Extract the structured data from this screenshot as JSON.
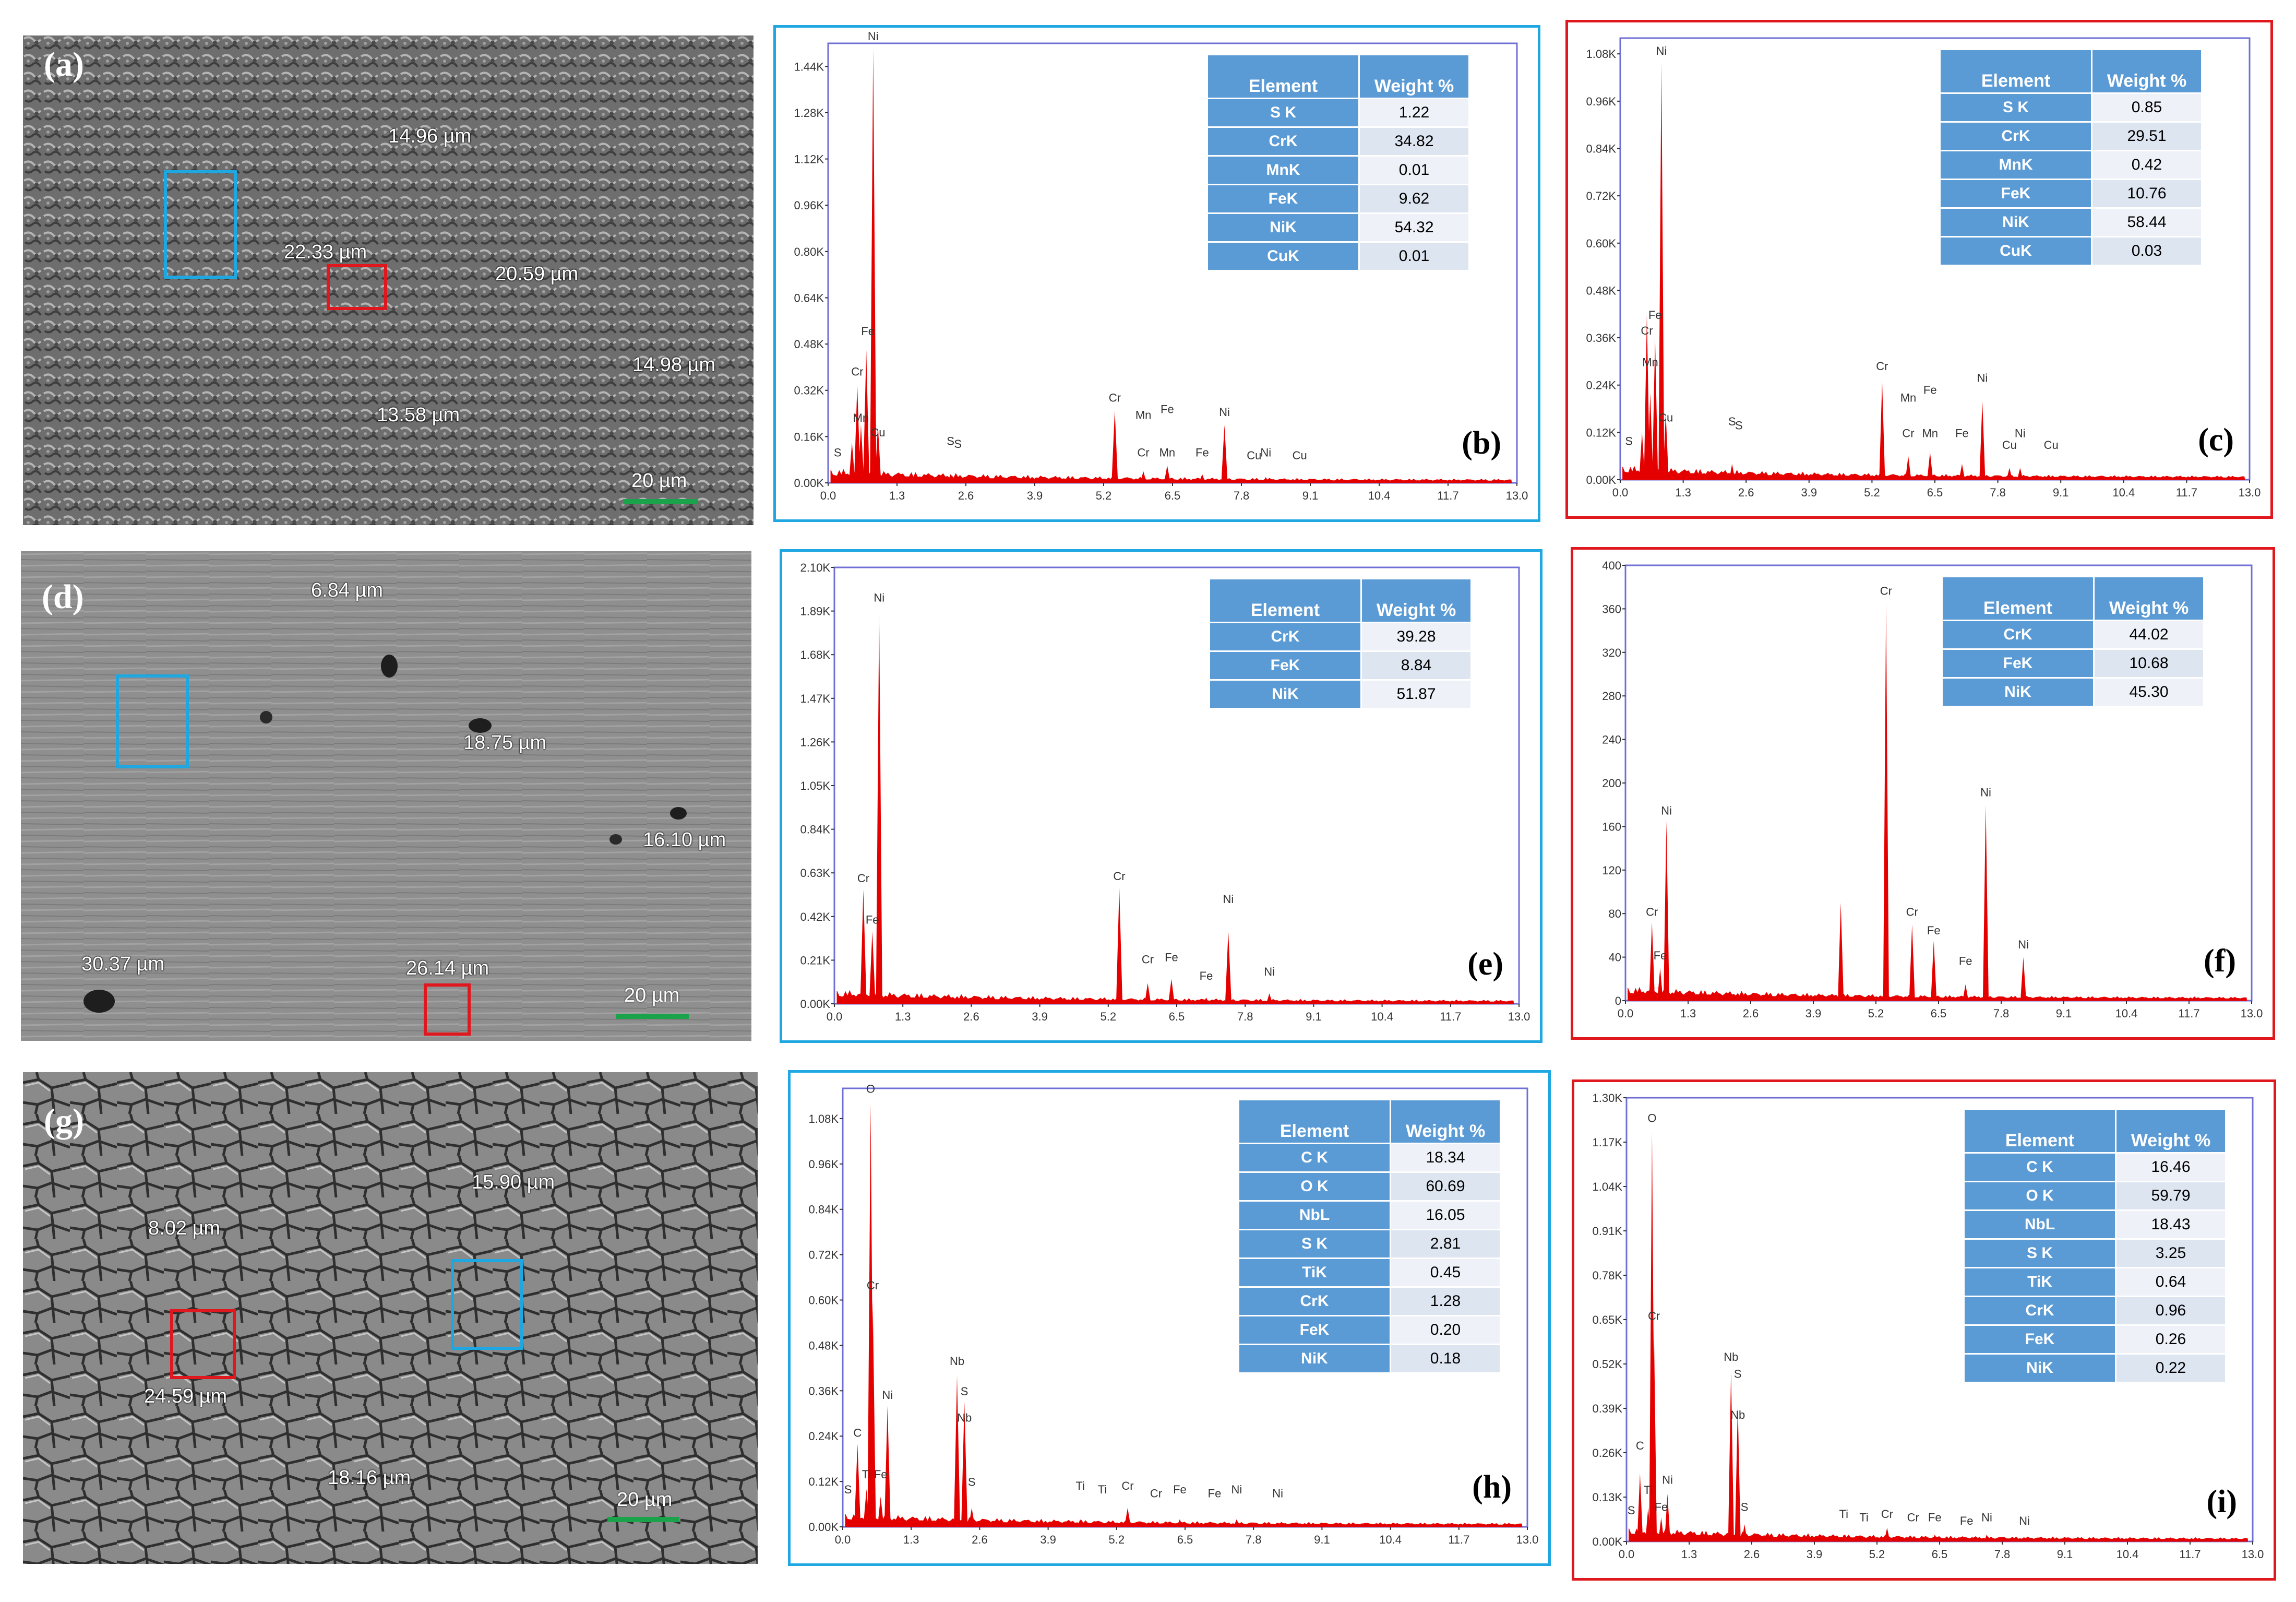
{
  "colors": {
    "blue_roi": "#1ea7e1",
    "red_roi": "#e0171c",
    "spectrum": "#e50000",
    "table_header": "#5b9bd5",
    "scale_bar": "#1aa34a"
  },
  "sem_panels": [
    {
      "label": "(a)",
      "measurements": [
        "14.96 µm",
        "22.33 µm",
        "20.59 µm",
        "14.98 µm",
        "13.58 µm"
      ],
      "scale": "20 µm"
    },
    {
      "label": "(d)",
      "measurements": [
        "6.84 µm",
        "18.75 µm",
        "16.10 µm",
        "30.37 µm",
        "26.14 µm"
      ],
      "scale": "20 µm"
    },
    {
      "label": "(g)",
      "measurements": [
        "15.90 µm",
        "8.02 µm",
        "24.59 µm",
        "18.16 µm"
      ],
      "scale": "20 µm"
    }
  ],
  "table_headers": {
    "element": "Element",
    "weight": "Weight %"
  },
  "chart_data": [
    {
      "type": "bar",
      "panel": "(b)",
      "xlim": [
        0,
        13
      ],
      "x_ticks": [
        "0.0",
        "1.3",
        "2.6",
        "3.9",
        "5.2",
        "6.5",
        "7.8",
        "9.1",
        "10.4",
        "11.7",
        "13.0"
      ],
      "y_ticks": [
        "0.00K",
        "0.16K",
        "0.32K",
        "0.48K",
        "0.64K",
        "0.80K",
        "0.96K",
        "1.12K",
        "1.28K",
        "1.44K"
      ],
      "ylim": [
        0,
        1.52
      ],
      "peaks": [
        {
          "x": 0.45,
          "y": 0.14
        },
        {
          "x": 0.55,
          "y": 0.34
        },
        {
          "x": 0.62,
          "y": 0.2
        },
        {
          "x": 0.72,
          "y": 0.46
        },
        {
          "x": 0.85,
          "y": 1.5
        },
        {
          "x": 0.94,
          "y": 0.2
        },
        {
          "x": 2.31,
          "y": 0.03
        },
        {
          "x": 5.41,
          "y": 0.25
        },
        {
          "x": 5.95,
          "y": 0.04
        },
        {
          "x": 6.4,
          "y": 0.06
        },
        {
          "x": 7.06,
          "y": 0.03
        },
        {
          "x": 7.48,
          "y": 0.2
        },
        {
          "x": 8.04,
          "y": 0.01
        },
        {
          "x": 8.26,
          "y": 0.02
        }
      ],
      "peak_labels": [
        {
          "x": 0.18,
          "y": 0.08,
          "t": "S"
        },
        {
          "x": 0.55,
          "y": 0.36,
          "t": "Cr"
        },
        {
          "x": 0.62,
          "y": 0.2,
          "t": "Mn"
        },
        {
          "x": 0.75,
          "y": 0.5,
          "t": "Fe"
        },
        {
          "x": 0.85,
          "y": 1.52,
          "t": "Ni"
        },
        {
          "x": 0.94,
          "y": 0.15,
          "t": "Cu"
        },
        {
          "x": 2.31,
          "y": 0.12,
          "t": "S"
        },
        {
          "x": 2.45,
          "y": 0.11,
          "t": "S"
        },
        {
          "x": 5.41,
          "y": 0.27,
          "t": "Cr"
        },
        {
          "x": 5.95,
          "y": 0.21,
          "t": "Mn"
        },
        {
          "x": 6.4,
          "y": 0.23,
          "t": "Fe"
        },
        {
          "x": 5.95,
          "y": 0.08,
          "t": "Cr"
        },
        {
          "x": 6.4,
          "y": 0.08,
          "t": "Mn"
        },
        {
          "x": 7.06,
          "y": 0.08,
          "t": "Fe"
        },
        {
          "x": 7.48,
          "y": 0.22,
          "t": "Ni"
        },
        {
          "x": 8.04,
          "y": 0.07,
          "t": "Cu"
        },
        {
          "x": 8.26,
          "y": 0.08,
          "t": "Ni"
        },
        {
          "x": 8.9,
          "y": 0.07,
          "t": "Cu"
        }
      ],
      "table": [
        [
          "S K",
          "1.22"
        ],
        [
          "CrK",
          "34.82"
        ],
        [
          "MnK",
          "0.01"
        ],
        [
          "FeK",
          "9.62"
        ],
        [
          "NiK",
          "54.32"
        ],
        [
          "CuK",
          "0.01"
        ]
      ]
    },
    {
      "type": "bar",
      "panel": "(c)",
      "xlim": [
        0,
        13
      ],
      "x_ticks": [
        "0.0",
        "1.3",
        "2.6",
        "3.9",
        "5.2",
        "6.5",
        "7.8",
        "9.1",
        "10.4",
        "11.7",
        "13.0"
      ],
      "y_ticks": [
        "0.00K",
        "0.12K",
        "0.24K",
        "0.36K",
        "0.48K",
        "0.60K",
        "0.72K",
        "0.84K",
        "0.96K",
        "1.08K"
      ],
      "ylim": [
        0,
        1.12
      ],
      "peaks": [
        {
          "x": 0.45,
          "y": 0.12
        },
        {
          "x": 0.55,
          "y": 0.42
        },
        {
          "x": 0.62,
          "y": 0.22
        },
        {
          "x": 0.72,
          "y": 0.36
        },
        {
          "x": 0.85,
          "y": 1.06
        },
        {
          "x": 0.94,
          "y": 0.17
        },
        {
          "x": 2.31,
          "y": 0.04
        },
        {
          "x": 5.41,
          "y": 0.25
        },
        {
          "x": 5.95,
          "y": 0.06
        },
        {
          "x": 6.4,
          "y": 0.07
        },
        {
          "x": 7.06,
          "y": 0.04
        },
        {
          "x": 7.48,
          "y": 0.2
        },
        {
          "x": 8.04,
          "y": 0.03
        },
        {
          "x": 8.26,
          "y": 0.03
        }
      ],
      "peak_labels": [
        {
          "x": 0.18,
          "y": 0.08,
          "t": "S"
        },
        {
          "x": 0.55,
          "y": 0.36,
          "t": "Cr"
        },
        {
          "x": 0.62,
          "y": 0.28,
          "t": "Mn"
        },
        {
          "x": 0.72,
          "y": 0.4,
          "t": "Fe"
        },
        {
          "x": 0.85,
          "y": 1.07,
          "t": "Ni"
        },
        {
          "x": 0.94,
          "y": 0.14,
          "t": "Cu"
        },
        {
          "x": 2.31,
          "y": 0.13,
          "t": "S"
        },
        {
          "x": 2.45,
          "y": 0.12,
          "t": "S"
        },
        {
          "x": 5.41,
          "y": 0.27,
          "t": "Cr"
        },
        {
          "x": 5.95,
          "y": 0.19,
          "t": "Mn"
        },
        {
          "x": 6.4,
          "y": 0.21,
          "t": "Fe"
        },
        {
          "x": 5.95,
          "y": 0.1,
          "t": "Cr"
        },
        {
          "x": 6.4,
          "y": 0.1,
          "t": "Mn"
        },
        {
          "x": 7.06,
          "y": 0.1,
          "t": "Fe"
        },
        {
          "x": 7.48,
          "y": 0.24,
          "t": "Ni"
        },
        {
          "x": 8.04,
          "y": 0.07,
          "t": "Cu"
        },
        {
          "x": 8.26,
          "y": 0.1,
          "t": "Ni"
        },
        {
          "x": 8.9,
          "y": 0.07,
          "t": "Cu"
        }
      ],
      "table": [
        [
          "S K",
          "0.85"
        ],
        [
          "CrK",
          "29.51"
        ],
        [
          "MnK",
          "0.42"
        ],
        [
          "FeK",
          "10.76"
        ],
        [
          "NiK",
          "58.44"
        ],
        [
          "CuK",
          "0.03"
        ]
      ]
    },
    {
      "type": "bar",
      "panel": "(e)",
      "xlim": [
        0,
        13
      ],
      "x_ticks": [
        "0.0",
        "1.3",
        "2.6",
        "3.9",
        "5.2",
        "6.5",
        "7.8",
        "9.1",
        "10.4",
        "11.7",
        "13.0"
      ],
      "y_ticks": [
        "0.00K",
        "0.21K",
        "0.42K",
        "0.63K",
        "0.84K",
        "1.05K",
        "1.26K",
        "1.47K",
        "1.68K",
        "1.89K",
        "2.10K"
      ],
      "ylim": [
        0,
        2.1
      ],
      "peaks": [
        {
          "x": 0.55,
          "y": 0.55
        },
        {
          "x": 0.72,
          "y": 0.35
        },
        {
          "x": 0.85,
          "y": 1.9
        },
        {
          "x": 5.41,
          "y": 0.56
        },
        {
          "x": 5.95,
          "y": 0.1
        },
        {
          "x": 6.4,
          "y": 0.12
        },
        {
          "x": 7.06,
          "y": 0.03
        },
        {
          "x": 7.48,
          "y": 0.35
        },
        {
          "x": 8.26,
          "y": 0.05
        }
      ],
      "peak_labels": [
        {
          "x": 0.55,
          "y": 0.57,
          "t": "Cr"
        },
        {
          "x": 0.72,
          "y": 0.37,
          "t": "Fe"
        },
        {
          "x": 0.85,
          "y": 1.92,
          "t": "Ni"
        },
        {
          "x": 5.41,
          "y": 0.58,
          "t": "Cr"
        },
        {
          "x": 5.95,
          "y": 0.18,
          "t": "Cr"
        },
        {
          "x": 6.4,
          "y": 0.19,
          "t": "Fe"
        },
        {
          "x": 7.06,
          "y": 0.1,
          "t": "Fe"
        },
        {
          "x": 7.48,
          "y": 0.47,
          "t": "Ni"
        },
        {
          "x": 8.26,
          "y": 0.12,
          "t": "Ni"
        }
      ],
      "table": [
        [
          "CrK",
          "39.28"
        ],
        [
          "FeK",
          "8.84"
        ],
        [
          "NiK",
          "51.87"
        ]
      ]
    },
    {
      "type": "bar",
      "panel": "(f)",
      "xlim": [
        0,
        13
      ],
      "x_ticks": [
        "0.0",
        "1.3",
        "2.6",
        "3.9",
        "5.2",
        "6.5",
        "7.8",
        "9.1",
        "10.4",
        "11.7",
        "13.0"
      ],
      "y_ticks": [
        "0",
        "40",
        "80",
        "120",
        "160",
        "200",
        "240",
        "280",
        "320",
        "360",
        "400"
      ],
      "ylim": [
        0,
        400
      ],
      "peaks": [
        {
          "x": 0.55,
          "y": 72
        },
        {
          "x": 0.72,
          "y": 30
        },
        {
          "x": 0.85,
          "y": 165
        },
        {
          "x": 4.47,
          "y": 90
        },
        {
          "x": 5.41,
          "y": 365
        },
        {
          "x": 5.95,
          "y": 70
        },
        {
          "x": 6.4,
          "y": 55
        },
        {
          "x": 7.06,
          "y": 15
        },
        {
          "x": 7.48,
          "y": 180
        },
        {
          "x": 8.26,
          "y": 40
        }
      ],
      "peak_labels": [
        {
          "x": 0.55,
          "y": 75,
          "t": "Cr"
        },
        {
          "x": 0.72,
          "y": 35,
          "t": "Fe"
        },
        {
          "x": 0.85,
          "y": 168,
          "t": "Ni"
        },
        {
          "x": 5.41,
          "y": 370,
          "t": "Cr"
        },
        {
          "x": 5.95,
          "y": 75,
          "t": "Cr"
        },
        {
          "x": 6.4,
          "y": 58,
          "t": "Fe"
        },
        {
          "x": 7.06,
          "y": 30,
          "t": "Fe"
        },
        {
          "x": 7.48,
          "y": 185,
          "t": "Ni"
        },
        {
          "x": 8.26,
          "y": 45,
          "t": "Ni"
        }
      ],
      "table": [
        [
          "CrK",
          "44.02"
        ],
        [
          "FeK",
          "10.68"
        ],
        [
          "NiK",
          "45.30"
        ]
      ]
    },
    {
      "type": "bar",
      "panel": "(h)",
      "xlim": [
        0,
        13
      ],
      "x_ticks": [
        "0.0",
        "1.3",
        "2.6",
        "3.9",
        "5.2",
        "6.5",
        "7.8",
        "9.1",
        "10.4",
        "11.7",
        "13.0"
      ],
      "y_ticks": [
        "0.00K",
        "0.12K",
        "0.24K",
        "0.36K",
        "0.48K",
        "0.60K",
        "0.72K",
        "0.84K",
        "0.96K",
        "1.08K"
      ],
      "ylim": [
        0,
        1.16
      ],
      "peaks": [
        {
          "x": 0.28,
          "y": 0.22
        },
        {
          "x": 0.45,
          "y": 0.1
        },
        {
          "x": 0.53,
          "y": 1.12
        },
        {
          "x": 0.57,
          "y": 0.6
        },
        {
          "x": 0.72,
          "y": 0.08
        },
        {
          "x": 0.85,
          "y": 0.32
        },
        {
          "x": 2.17,
          "y": 0.4
        },
        {
          "x": 2.31,
          "y": 0.33
        },
        {
          "x": 2.45,
          "y": 0.05
        },
        {
          "x": 4.51,
          "y": 0.02
        },
        {
          "x": 5.41,
          "y": 0.05
        },
        {
          "x": 6.4,
          "y": 0.02
        },
        {
          "x": 7.48,
          "y": 0.02
        }
      ],
      "peak_labels": [
        {
          "x": 0.1,
          "y": 0.08,
          "t": "S"
        },
        {
          "x": 0.28,
          "y": 0.23,
          "t": "C"
        },
        {
          "x": 0.45,
          "y": 0.12,
          "t": "Ti"
        },
        {
          "x": 0.53,
          "y": 1.14,
          "t": "O"
        },
        {
          "x": 0.57,
          "y": 0.62,
          "t": "Cr"
        },
        {
          "x": 0.72,
          "y": 0.12,
          "t": "Fe"
        },
        {
          "x": 0.85,
          "y": 0.33,
          "t": "Ni"
        },
        {
          "x": 2.17,
          "y": 0.42,
          "t": "Nb"
        },
        {
          "x": 2.31,
          "y": 0.34,
          "t": "S"
        },
        {
          "x": 2.31,
          "y": 0.27,
          "t": "Nb"
        },
        {
          "x": 2.45,
          "y": 0.1,
          "t": "S"
        },
        {
          "x": 4.51,
          "y": 0.09,
          "t": "Ti"
        },
        {
          "x": 4.93,
          "y": 0.08,
          "t": "Ti"
        },
        {
          "x": 5.41,
          "y": 0.09,
          "t": "Cr"
        },
        {
          "x": 5.95,
          "y": 0.07,
          "t": "Cr"
        },
        {
          "x": 6.4,
          "y": 0.08,
          "t": "Fe"
        },
        {
          "x": 7.06,
          "y": 0.07,
          "t": "Fe"
        },
        {
          "x": 7.48,
          "y": 0.08,
          "t": "Ni"
        },
        {
          "x": 8.26,
          "y": 0.07,
          "t": "Ni"
        }
      ],
      "table": [
        [
          "C K",
          "18.34"
        ],
        [
          "O K",
          "60.69"
        ],
        [
          "NbL",
          "16.05"
        ],
        [
          "S K",
          "2.81"
        ],
        [
          "TiK",
          "0.45"
        ],
        [
          "CrK",
          "1.28"
        ],
        [
          "FeK",
          "0.20"
        ],
        [
          "NiK",
          "0.18"
        ]
      ]
    },
    {
      "type": "bar",
      "panel": "(i)",
      "xlim": [
        0,
        13
      ],
      "x_ticks": [
        "0.0",
        "1.3",
        "2.6",
        "3.9",
        "5.2",
        "6.5",
        "7.8",
        "9.1",
        "10.4",
        "11.7",
        "13.0"
      ],
      "y_ticks": [
        "0.00K",
        "0.13K",
        "0.26K",
        "0.39K",
        "0.52K",
        "0.65K",
        "0.78K",
        "0.91K",
        "1.04K",
        "1.17K",
        "1.30K"
      ],
      "ylim": [
        0,
        1.3
      ],
      "peaks": [
        {
          "x": 0.28,
          "y": 0.2
        },
        {
          "x": 0.45,
          "y": 0.1
        },
        {
          "x": 0.53,
          "y": 1.2
        },
        {
          "x": 0.57,
          "y": 0.62
        },
        {
          "x": 0.72,
          "y": 0.07
        },
        {
          "x": 0.85,
          "y": 0.14
        },
        {
          "x": 2.17,
          "y": 0.5
        },
        {
          "x": 2.31,
          "y": 0.4
        },
        {
          "x": 2.45,
          "y": 0.05
        },
        {
          "x": 4.51,
          "y": 0.02
        },
        {
          "x": 5.41,
          "y": 0.04
        },
        {
          "x": 6.4,
          "y": 0.02
        },
        {
          "x": 7.48,
          "y": 0.02
        }
      ],
      "peak_labels": [
        {
          "x": 0.1,
          "y": 0.07,
          "t": "S"
        },
        {
          "x": 0.28,
          "y": 0.26,
          "t": "C"
        },
        {
          "x": 0.45,
          "y": 0.13,
          "t": "Ti"
        },
        {
          "x": 0.53,
          "y": 1.22,
          "t": "O"
        },
        {
          "x": 0.57,
          "y": 0.64,
          "t": "Cr"
        },
        {
          "x": 0.72,
          "y": 0.08,
          "t": "Fe"
        },
        {
          "x": 0.85,
          "y": 0.16,
          "t": "Ni"
        },
        {
          "x": 2.17,
          "y": 0.52,
          "t": "Nb"
        },
        {
          "x": 2.31,
          "y": 0.47,
          "t": "S"
        },
        {
          "x": 2.31,
          "y": 0.35,
          "t": "Nb"
        },
        {
          "x": 2.45,
          "y": 0.08,
          "t": "S"
        },
        {
          "x": 4.51,
          "y": 0.06,
          "t": "Ti"
        },
        {
          "x": 4.93,
          "y": 0.05,
          "t": "Ti"
        },
        {
          "x": 5.41,
          "y": 0.06,
          "t": "Cr"
        },
        {
          "x": 5.95,
          "y": 0.05,
          "t": "Cr"
        },
        {
          "x": 6.4,
          "y": 0.05,
          "t": "Fe"
        },
        {
          "x": 7.06,
          "y": 0.04,
          "t": "Fe"
        },
        {
          "x": 7.48,
          "y": 0.05,
          "t": "Ni"
        },
        {
          "x": 8.26,
          "y": 0.04,
          "t": "Ni"
        }
      ],
      "table": [
        [
          "C K",
          "16.46"
        ],
        [
          "O K",
          "59.79"
        ],
        [
          "NbL",
          "18.43"
        ],
        [
          "S K",
          "3.25"
        ],
        [
          "TiK",
          "0.64"
        ],
        [
          "CrK",
          "0.96"
        ],
        [
          "FeK",
          "0.26"
        ],
        [
          "NiK",
          "0.22"
        ]
      ]
    }
  ]
}
